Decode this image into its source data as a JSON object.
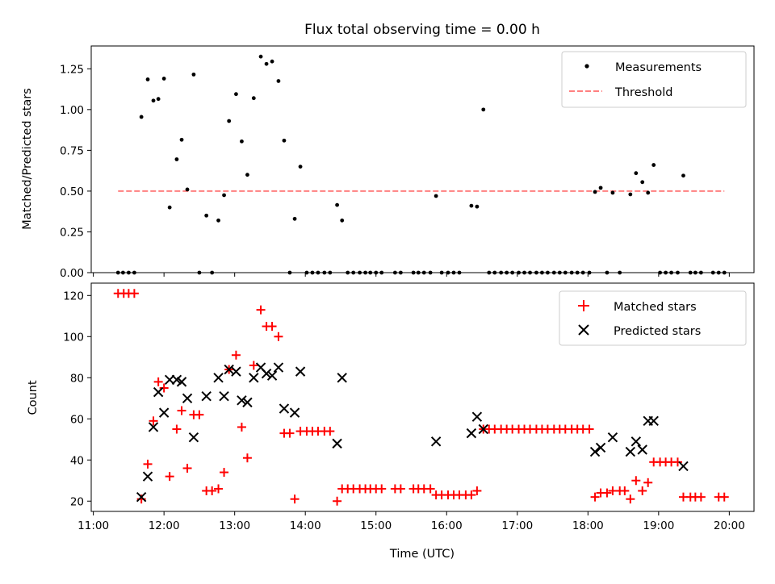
{
  "title": "Flux total observing time = 0.00 h",
  "chart_data": [
    {
      "type": "scatter",
      "ylabel": "Matched/Predicted stars",
      "ylim": [
        0,
        1.39
      ],
      "yticks": [
        "0.00",
        "0.25",
        "0.50",
        "0.75",
        "1.00",
        "1.25"
      ],
      "ytick_values": [
        0,
        0.25,
        0.5,
        0.75,
        1.0,
        1.25
      ],
      "legend": {
        "location": "upper right",
        "entries": [
          {
            "label": "Measurements",
            "marker": "dot",
            "color": "#000000"
          },
          {
            "label": "Threshold",
            "marker": "dashed-line",
            "color": "#ff8080"
          }
        ]
      },
      "series": [
        {
          "name": "Measurements",
          "marker": "dot",
          "color": "#000000",
          "points": [
            [
              11.35,
              0
            ],
            [
              11.42,
              0
            ],
            [
              11.5,
              0
            ],
            [
              11.58,
              0
            ],
            [
              11.68,
              0.955
            ],
            [
              11.77,
              1.185
            ],
            [
              11.85,
              1.055
            ],
            [
              11.92,
              1.065
            ],
            [
              12.0,
              1.19
            ],
            [
              12.08,
              0.4
            ],
            [
              12.18,
              0.695
            ],
            [
              12.25,
              0.815
            ],
            [
              12.33,
              0.51
            ],
            [
              12.42,
              1.215
            ],
            [
              12.5,
              0
            ],
            [
              12.6,
              0.35
            ],
            [
              12.68,
              0
            ],
            [
              12.77,
              0.32
            ],
            [
              12.85,
              0.475
            ],
            [
              12.92,
              0.93
            ],
            [
              13.02,
              1.095
            ],
            [
              13.1,
              0.805
            ],
            [
              13.18,
              0.6
            ],
            [
              13.27,
              1.07
            ],
            [
              13.37,
              1.325
            ],
            [
              13.45,
              1.28
            ],
            [
              13.53,
              1.295
            ],
            [
              13.62,
              1.175
            ],
            [
              13.7,
              0.81
            ],
            [
              13.78,
              0
            ],
            [
              13.85,
              0.33
            ],
            [
              13.93,
              0.65
            ],
            [
              14.02,
              0
            ],
            [
              14.1,
              0
            ],
            [
              14.18,
              0
            ],
            [
              14.27,
              0
            ],
            [
              14.35,
              0
            ],
            [
              14.45,
              0.415
            ],
            [
              14.52,
              0.32
            ],
            [
              14.6,
              0
            ],
            [
              14.68,
              0
            ],
            [
              14.77,
              0
            ],
            [
              14.85,
              0
            ],
            [
              14.92,
              0
            ],
            [
              15.0,
              0
            ],
            [
              15.08,
              0
            ],
            [
              15.27,
              0
            ],
            [
              15.35,
              0
            ],
            [
              15.53,
              0
            ],
            [
              15.6,
              0
            ],
            [
              15.68,
              0
            ],
            [
              15.77,
              0
            ],
            [
              15.85,
              0.47
            ],
            [
              15.93,
              0
            ],
            [
              16.02,
              0
            ],
            [
              16.1,
              0
            ],
            [
              16.18,
              0
            ],
            [
              16.35,
              0.41
            ],
            [
              16.43,
              0.405
            ],
            [
              16.52,
              1.0
            ],
            [
              16.6,
              0
            ],
            [
              16.68,
              0
            ],
            [
              16.77,
              0
            ],
            [
              16.85,
              0
            ],
            [
              16.93,
              0
            ],
            [
              17.02,
              0
            ],
            [
              17.1,
              0
            ],
            [
              17.18,
              0
            ],
            [
              17.27,
              0
            ],
            [
              17.35,
              0
            ],
            [
              17.43,
              0
            ],
            [
              17.52,
              0
            ],
            [
              17.6,
              0
            ],
            [
              17.68,
              0
            ],
            [
              17.77,
              0
            ],
            [
              17.85,
              0
            ],
            [
              17.93,
              0
            ],
            [
              18.02,
              0
            ],
            [
              18.1,
              0.495
            ],
            [
              18.18,
              0.52
            ],
            [
              18.27,
              0
            ],
            [
              18.35,
              0.49
            ],
            [
              18.45,
              0
            ],
            [
              18.6,
              0.48
            ],
            [
              18.68,
              0.61
            ],
            [
              18.77,
              0.555
            ],
            [
              18.85,
              0.49
            ],
            [
              18.93,
              0.66
            ],
            [
              19.02,
              0
            ],
            [
              19.1,
              0
            ],
            [
              19.18,
              0
            ],
            [
              19.27,
              0
            ],
            [
              19.35,
              0.595
            ],
            [
              19.45,
              0
            ],
            [
              19.52,
              0
            ],
            [
              19.6,
              0
            ],
            [
              19.77,
              0
            ],
            [
              19.85,
              0
            ],
            [
              19.93,
              0
            ]
          ]
        },
        {
          "name": "Threshold",
          "type": "line",
          "style": "dashed",
          "color": "#ff8080",
          "points": [
            [
              11.35,
              0.5
            ],
            [
              19.93,
              0.5
            ]
          ]
        }
      ]
    },
    {
      "type": "scatter",
      "xlabel": "Time (UTC)",
      "ylabel": "Count",
      "ylim": [
        15,
        126
      ],
      "yticks": [
        "20",
        "40",
        "60",
        "80",
        "100",
        "120"
      ],
      "ytick_values": [
        20,
        40,
        60,
        80,
        100,
        120
      ],
      "xlim": [
        10.97,
        20.35
      ],
      "xticks": [
        "11:00",
        "12:00",
        "13:00",
        "14:00",
        "15:00",
        "16:00",
        "17:00",
        "18:00",
        "19:00",
        "20:00"
      ],
      "xtick_values": [
        11,
        12,
        13,
        14,
        15,
        16,
        17,
        18,
        19,
        20
      ],
      "legend": {
        "location": "upper right",
        "entries": [
          {
            "label": "Matched stars",
            "marker": "plus",
            "color": "#ff0000"
          },
          {
            "label": "Predicted stars",
            "marker": "x",
            "color": "#000000"
          }
        ]
      },
      "series": [
        {
          "name": "Matched stars",
          "marker": "plus",
          "color": "#ff0000",
          "points": [
            [
              11.35,
              121
            ],
            [
              11.43,
              121
            ],
            [
              11.5,
              121
            ],
            [
              11.58,
              121
            ],
            [
              11.68,
              21
            ],
            [
              11.77,
              38
            ],
            [
              11.85,
              59
            ],
            [
              11.92,
              78
            ],
            [
              12.0,
              75
            ],
            [
              12.08,
              32
            ],
            [
              12.18,
              55
            ],
            [
              12.25,
              64
            ],
            [
              12.33,
              36
            ],
            [
              12.42,
              62
            ],
            [
              12.5,
              62
            ],
            [
              12.6,
              25
            ],
            [
              12.68,
              25
            ],
            [
              12.77,
              26
            ],
            [
              12.85,
              34
            ],
            [
              12.92,
              84
            ],
            [
              13.02,
              91
            ],
            [
              13.1,
              56
            ],
            [
              13.18,
              41
            ],
            [
              13.27,
              86
            ],
            [
              13.37,
              113
            ],
            [
              13.45,
              105
            ],
            [
              13.53,
              105
            ],
            [
              13.62,
              100
            ],
            [
              13.7,
              53
            ],
            [
              13.78,
              53
            ],
            [
              13.85,
              21
            ],
            [
              13.93,
              54
            ],
            [
              14.02,
              54
            ],
            [
              14.1,
              54
            ],
            [
              14.18,
              54
            ],
            [
              14.27,
              54
            ],
            [
              14.35,
              54
            ],
            [
              14.45,
              20
            ],
            [
              14.52,
              26
            ],
            [
              14.6,
              26
            ],
            [
              14.68,
              26
            ],
            [
              14.77,
              26
            ],
            [
              14.85,
              26
            ],
            [
              14.92,
              26
            ],
            [
              15.0,
              26
            ],
            [
              15.08,
              26
            ],
            [
              15.27,
              26
            ],
            [
              15.35,
              26
            ],
            [
              15.53,
              26
            ],
            [
              15.6,
              26
            ],
            [
              15.68,
              26
            ],
            [
              15.77,
              26
            ],
            [
              15.85,
              23
            ],
            [
              15.93,
              23
            ],
            [
              16.02,
              23
            ],
            [
              16.1,
              23
            ],
            [
              16.18,
              23
            ],
            [
              16.27,
              23
            ],
            [
              16.35,
              23
            ],
            [
              16.43,
              25
            ],
            [
              16.52,
              55
            ],
            [
              16.6,
              55
            ],
            [
              16.68,
              55
            ],
            [
              16.77,
              55
            ],
            [
              16.85,
              55
            ],
            [
              16.93,
              55
            ],
            [
              17.02,
              55
            ],
            [
              17.1,
              55
            ],
            [
              17.18,
              55
            ],
            [
              17.27,
              55
            ],
            [
              17.35,
              55
            ],
            [
              17.43,
              55
            ],
            [
              17.52,
              55
            ],
            [
              17.6,
              55
            ],
            [
              17.68,
              55
            ],
            [
              17.77,
              55
            ],
            [
              17.85,
              55
            ],
            [
              17.93,
              55
            ],
            [
              18.02,
              55
            ],
            [
              18.1,
              22
            ],
            [
              18.18,
              24
            ],
            [
              18.27,
              24
            ],
            [
              18.35,
              25
            ],
            [
              18.45,
              25
            ],
            [
              18.52,
              25
            ],
            [
              18.6,
              21
            ],
            [
              18.68,
              30
            ],
            [
              18.77,
              25
            ],
            [
              18.85,
              29
            ],
            [
              18.93,
              39
            ],
            [
              19.02,
              39
            ],
            [
              19.1,
              39
            ],
            [
              19.18,
              39
            ],
            [
              19.27,
              39
            ],
            [
              19.35,
              22
            ],
            [
              19.45,
              22
            ],
            [
              19.52,
              22
            ],
            [
              19.6,
              22
            ],
            [
              19.85,
              22
            ],
            [
              19.93,
              22
            ]
          ]
        },
        {
          "name": "Predicted stars",
          "marker": "x",
          "color": "#000000",
          "points": [
            [
              11.68,
              22
            ],
            [
              11.77,
              32
            ],
            [
              11.85,
              56
            ],
            [
              11.92,
              73
            ],
            [
              12.0,
              63
            ],
            [
              12.08,
              79
            ],
            [
              12.18,
              79
            ],
            [
              12.25,
              78
            ],
            [
              12.33,
              70
            ],
            [
              12.42,
              51
            ],
            [
              12.6,
              71
            ],
            [
              12.77,
              80
            ],
            [
              12.85,
              71
            ],
            [
              12.92,
              84
            ],
            [
              13.02,
              83
            ],
            [
              13.1,
              69
            ],
            [
              13.18,
              68
            ],
            [
              13.27,
              80
            ],
            [
              13.37,
              85
            ],
            [
              13.45,
              82
            ],
            [
              13.53,
              81
            ],
            [
              13.62,
              85
            ],
            [
              13.7,
              65
            ],
            [
              13.85,
              63
            ],
            [
              13.93,
              83
            ],
            [
              14.45,
              48
            ],
            [
              14.52,
              80
            ],
            [
              15.85,
              49
            ],
            [
              16.35,
              53
            ],
            [
              16.43,
              61
            ],
            [
              16.52,
              55
            ],
            [
              18.1,
              44
            ],
            [
              18.18,
              46
            ],
            [
              18.35,
              51
            ],
            [
              18.6,
              44
            ],
            [
              18.68,
              49
            ],
            [
              18.77,
              45
            ],
            [
              18.85,
              59
            ],
            [
              18.93,
              59
            ],
            [
              19.35,
              37
            ]
          ]
        }
      ]
    }
  ]
}
